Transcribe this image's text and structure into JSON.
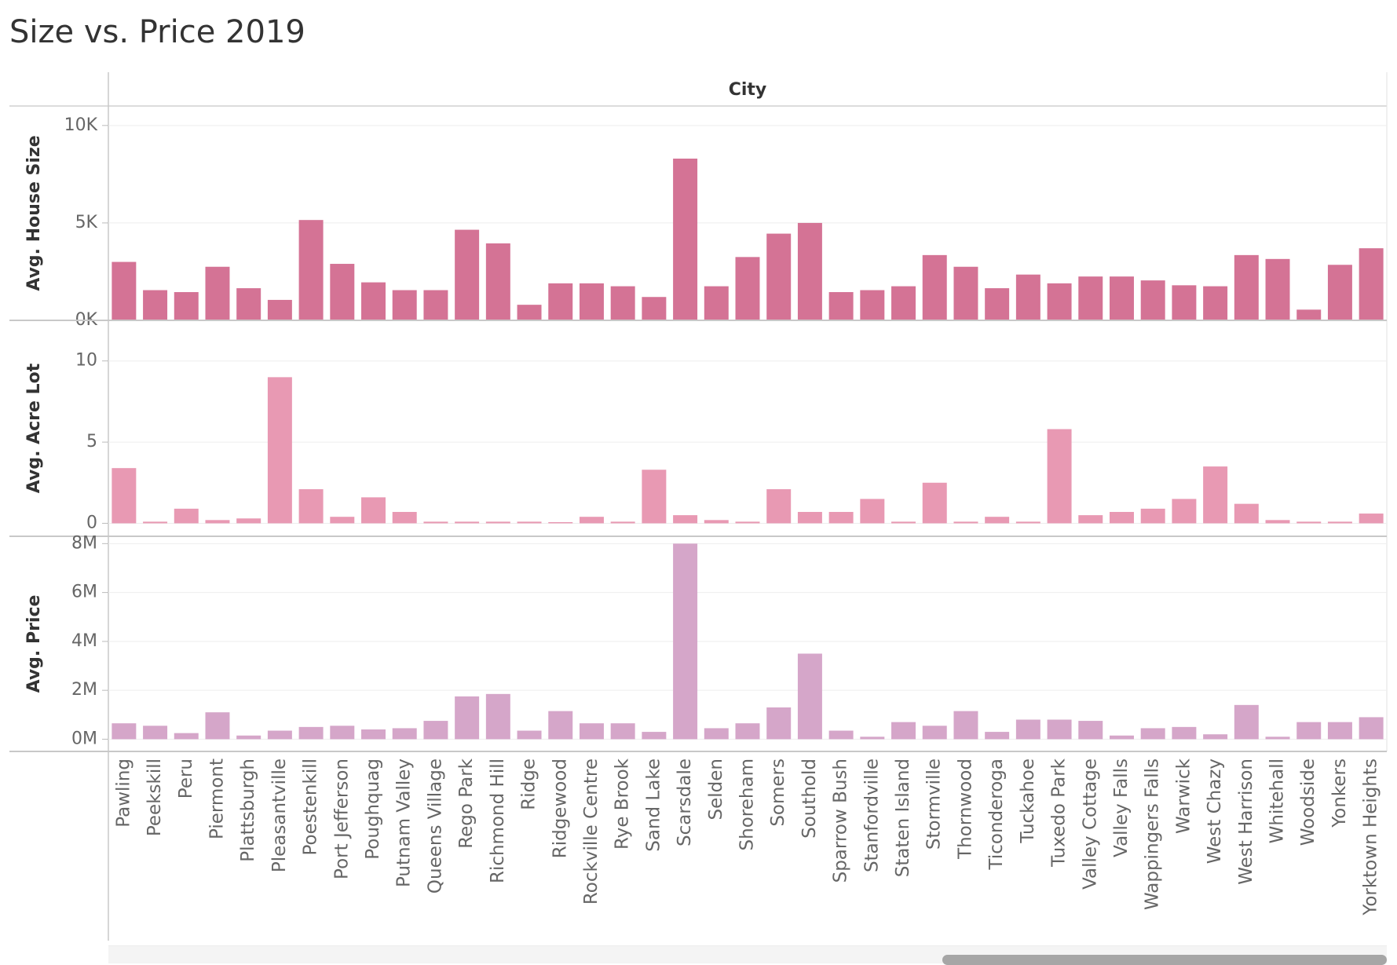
{
  "title": "Size vs. Price 2019",
  "chart_data": {
    "type": "bar",
    "title": "Size vs. Price 2019",
    "column_header": "City",
    "xlabel": "",
    "categories": [
      "Pawling",
      "Peekskill",
      "Peru",
      "Piermont",
      "Plattsburgh",
      "Pleasantville",
      "Poestenkill",
      "Port Jefferson",
      "Poughquag",
      "Putnam Valley",
      "Queens Village",
      "Rego Park",
      "Richmond Hill",
      "Ridge",
      "Ridgewood",
      "Rockville Centre",
      "Rye Brook",
      "Sand Lake",
      "Scarsdale",
      "Selden",
      "Shoreham",
      "Somers",
      "Southold",
      "Sparrow Bush",
      "Stanfordville",
      "Staten Island",
      "Stormville",
      "Thornwood",
      "Ticonderoga",
      "Tuckahoe",
      "Tuxedo Park",
      "Valley Cottage",
      "Valley Falls",
      "Wappingers Falls",
      "Warwick",
      "West Chazy",
      "West Harrison",
      "Whitehall",
      "Woodside",
      "Yonkers",
      "Yorktown Heights"
    ],
    "panels": [
      {
        "name": "Avg. House Size",
        "ylabel": "Avg. House Size",
        "color": "#d47395",
        "ylim": [
          0,
          11000
        ],
        "ticks": [
          0,
          5000,
          10000
        ],
        "tick_labels": [
          "0K",
          "5K",
          "10K"
        ],
        "values": [
          3000,
          1550,
          1450,
          2750,
          1650,
          1050,
          5150,
          2900,
          1950,
          1550,
          1550,
          4650,
          3950,
          800,
          1900,
          1900,
          1750,
          1200,
          8300,
          1750,
          3250,
          4450,
          5000,
          1450,
          1550,
          1750,
          3350,
          2750,
          1650,
          2350,
          1900,
          2250,
          2250,
          2050,
          1800,
          1750,
          3350,
          3150,
          550,
          2850,
          3700
        ]
      },
      {
        "name": "Avg. Acre Lot",
        "ylabel": "Avg. Acre Lot",
        "color": "#e899b3",
        "ylim": [
          -0.8,
          12.5
        ],
        "ticks": [
          0,
          5,
          10
        ],
        "tick_labels": [
          "0",
          "5",
          "10"
        ],
        "values": [
          3.4,
          0.1,
          0.9,
          0.2,
          0.3,
          9.0,
          2.1,
          0.4,
          1.6,
          0.7,
          0.1,
          0.1,
          0.1,
          0.1,
          0.0,
          0.4,
          0.1,
          3.3,
          0.5,
          0.2,
          0.1,
          2.1,
          0.7,
          0.7,
          1.5,
          0.1,
          2.5,
          0.1,
          0.4,
          0.1,
          5.8,
          0.5,
          0.7,
          0.9,
          1.5,
          3.5,
          1.2,
          0.2,
          0.1,
          0.1,
          0.6
        ]
      },
      {
        "name": "Avg. Price",
        "ylabel": "Avg. Price",
        "color": "#d5a6c9",
        "ylim": [
          -500000,
          8300000
        ],
        "ticks": [
          0,
          2000000,
          4000000,
          6000000,
          8000000
        ],
        "tick_labels": [
          "0M",
          "2M",
          "4M",
          "6M",
          "8M"
        ],
        "values": [
          650000,
          550000,
          250000,
          1100000,
          150000,
          350000,
          500000,
          550000,
          400000,
          450000,
          750000,
          1750000,
          1850000,
          350000,
          1150000,
          650000,
          650000,
          300000,
          8000000,
          450000,
          650000,
          1300000,
          3500000,
          350000,
          100000,
          700000,
          550000,
          1150000,
          300000,
          800000,
          800000,
          750000,
          150000,
          450000,
          500000,
          200000,
          1400000,
          100000,
          700000,
          700000,
          900000
        ]
      }
    ],
    "grid": true
  }
}
